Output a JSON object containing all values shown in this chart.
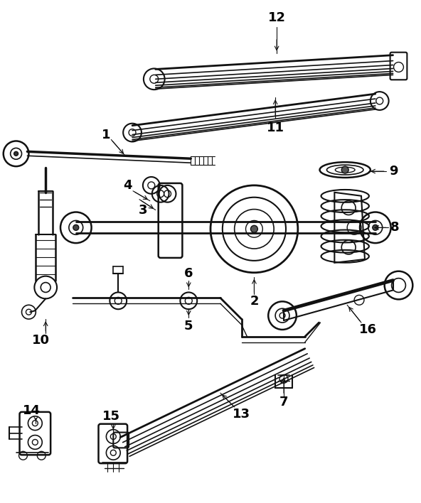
{
  "background_color": "#ffffff",
  "line_color": "#111111",
  "label_color": "#000000",
  "fig_width": 5.92,
  "fig_height": 7.08,
  "dpi": 100
}
